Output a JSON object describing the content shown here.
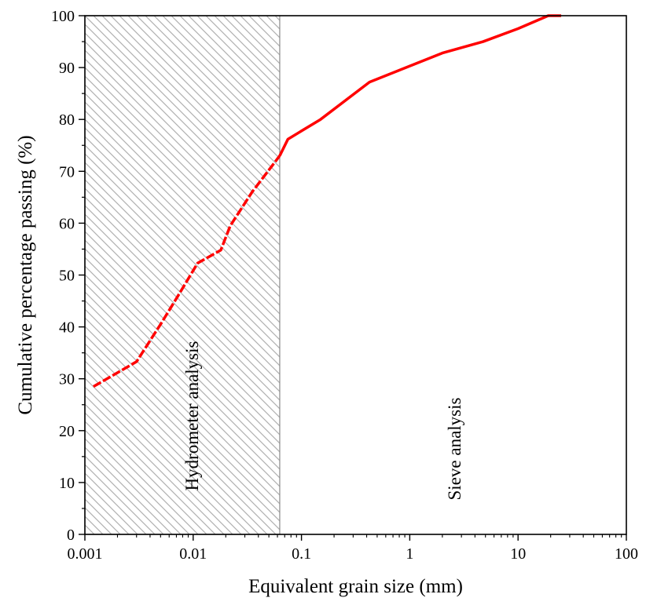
{
  "chart_data": {
    "type": "line",
    "title": "",
    "xlabel": "Equivalent grain size (mm)",
    "ylabel": "Cumulative percentage passing (%)",
    "x_scale": "log",
    "xlim": [
      0.001,
      100
    ],
    "ylim": [
      0,
      100
    ],
    "x_ticks": [
      0.001,
      0.01,
      0.1,
      1,
      10,
      100
    ],
    "x_tick_labels": [
      "0.001",
      "0.01",
      "0.1",
      "1",
      "10",
      "100"
    ],
    "y_ticks": [
      0,
      10,
      20,
      30,
      40,
      50,
      60,
      70,
      80,
      90,
      100
    ],
    "y_tick_labels": [
      "0",
      "10",
      "20",
      "30",
      "40",
      "50",
      "60",
      "70",
      "80",
      "90",
      "100"
    ],
    "grid": false,
    "regions": [
      {
        "label": "Hydrometer analysis",
        "x_range": [
          0.001,
          0.063
        ],
        "fill": "hatched",
        "line_style": "dashed"
      },
      {
        "label": "Sieve analysis",
        "x_range": [
          0.063,
          100
        ],
        "fill": "none",
        "line_style": "solid"
      }
    ],
    "series": [
      {
        "color": "#ff0000",
        "points": [
          {
            "x": 0.0012,
            "y": 28.5
          },
          {
            "x": 0.003,
            "y": 33.3
          },
          {
            "x": 0.005,
            "y": 40.5
          },
          {
            "x": 0.0075,
            "y": 46.5
          },
          {
            "x": 0.011,
            "y": 52.3
          },
          {
            "x": 0.018,
            "y": 54.8
          },
          {
            "x": 0.022,
            "y": 59.5
          },
          {
            "x": 0.035,
            "y": 66.0
          },
          {
            "x": 0.063,
            "y": 73.0
          },
          {
            "x": 0.075,
            "y": 76.2
          },
          {
            "x": 0.15,
            "y": 80.0
          },
          {
            "x": 0.425,
            "y": 87.2
          },
          {
            "x": 2.0,
            "y": 92.8
          },
          {
            "x": 4.75,
            "y": 95.0
          },
          {
            "x": 10,
            "y": 97.5
          },
          {
            "x": 19,
            "y": 100
          },
          {
            "x": 25,
            "y": 100
          }
        ]
      }
    ]
  },
  "colors": {
    "series": "#ff0000",
    "hatch": "#b0b0b0",
    "region_border": "#8a8a8a",
    "axis": "#000000"
  }
}
